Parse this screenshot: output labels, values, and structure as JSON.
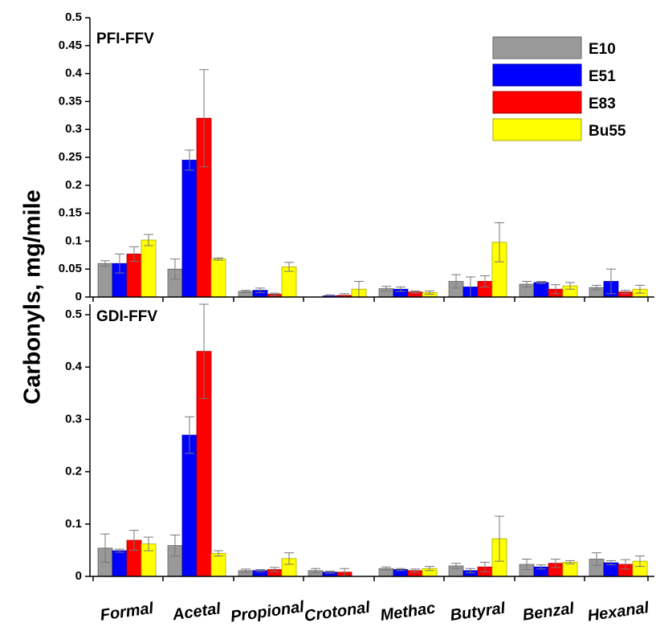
{
  "chart_data": {
    "type": "bar",
    "ylabel": "Carbonyls, mg/mile",
    "categories": [
      "Formal",
      "Acetal",
      "Propional",
      "Crotonal",
      "Methac",
      "Butyral",
      "Benzal",
      "Hexanal"
    ],
    "legend": {
      "placement": "top-right",
      "entries": [
        {
          "name": "E10",
          "color": "#999999"
        },
        {
          "name": "E51",
          "color": "#0000ff"
        },
        {
          "name": "E83",
          "color": "#ff0000"
        },
        {
          "name": "Bu55",
          "color": "#ffff00"
        }
      ]
    },
    "panels": [
      {
        "title": "PFI-FFV",
        "ylim": [
          0,
          0.5
        ],
        "yticks": [
          0,
          0.05,
          0.1,
          0.15,
          0.2,
          0.25,
          0.3,
          0.35,
          0.4,
          0.45,
          0.5
        ],
        "ytick_labels": [
          "0",
          "0.05",
          "0.1",
          "0.15",
          "0.2",
          "0.25",
          "0.3",
          "0.35",
          "0.4",
          "0.45",
          "0.5"
        ],
        "series": [
          {
            "name": "E10",
            "values": [
              0.06,
              0.05,
              0.01,
              0,
              0.015,
              0.028,
              0.023,
              0.017
            ],
            "errors": [
              0.005,
              0.018,
              0.002,
              0,
              0.004,
              0.012,
              0.005,
              0.004
            ]
          },
          {
            "name": "E51",
            "values": [
              0.06,
              0.245,
              0.012,
              0.002,
              0.014,
              0.018,
              0.026,
              0.028
            ],
            "errors": [
              0.017,
              0.018,
              0.004,
              0.002,
              0.004,
              0.018,
              0.002,
              0.022
            ]
          },
          {
            "name": "E83",
            "values": [
              0.077,
              0.32,
              0.005,
              0.003,
              0.009,
              0.028,
              0.014,
              0.009
            ],
            "errors": [
              0.013,
              0.087,
              0.002,
              0.003,
              0.002,
              0.01,
              0.008,
              0.003
            ]
          },
          {
            "name": "Bu55",
            "values": [
              0.102,
              0.068,
              0.054,
              0.014,
              0.008,
              0.098,
              0.02,
              0.014
            ],
            "errors": [
              0.01,
              0.002,
              0.008,
              0.014,
              0.003,
              0.035,
              0.006,
              0.007
            ]
          }
        ]
      },
      {
        "title": "GDI-FFV",
        "ylim": [
          0,
          0.52
        ],
        "yticks": [
          0,
          0.1,
          0.2,
          0.3,
          0.4,
          0.5
        ],
        "ytick_labels": [
          "0",
          "0.1",
          "0.2",
          "0.3",
          "0.4",
          "0.5"
        ],
        "series": [
          {
            "name": "E10",
            "values": [
              0.054,
              0.059,
              0.011,
              0.011,
              0.015,
              0.02,
              0.023,
              0.033
            ],
            "errors": [
              0.027,
              0.02,
              0.003,
              0.004,
              0.003,
              0.005,
              0.01,
              0.012
            ]
          },
          {
            "name": "E51",
            "values": [
              0.049,
              0.27,
              0.011,
              0.008,
              0.013,
              0.011,
              0.018,
              0.026
            ],
            "errors": [
              0.003,
              0.035,
              0.002,
              0.002,
              0.002,
              0.004,
              0.004,
              0.004
            ]
          },
          {
            "name": "E83",
            "values": [
              0.069,
              0.43,
              0.013,
              0.008,
              0.011,
              0.018,
              0.025,
              0.023
            ],
            "errors": [
              0.019,
              0.09,
              0.004,
              0.007,
              0.003,
              0.009,
              0.008,
              0.009
            ]
          },
          {
            "name": "Bu55",
            "values": [
              0.062,
              0.044,
              0.034,
              0,
              0.015,
              0.072,
              0.027,
              0.029
            ],
            "errors": [
              0.013,
              0.005,
              0.011,
              0,
              0.004,
              0.043,
              0.003,
              0.01
            ]
          }
        ]
      }
    ]
  }
}
